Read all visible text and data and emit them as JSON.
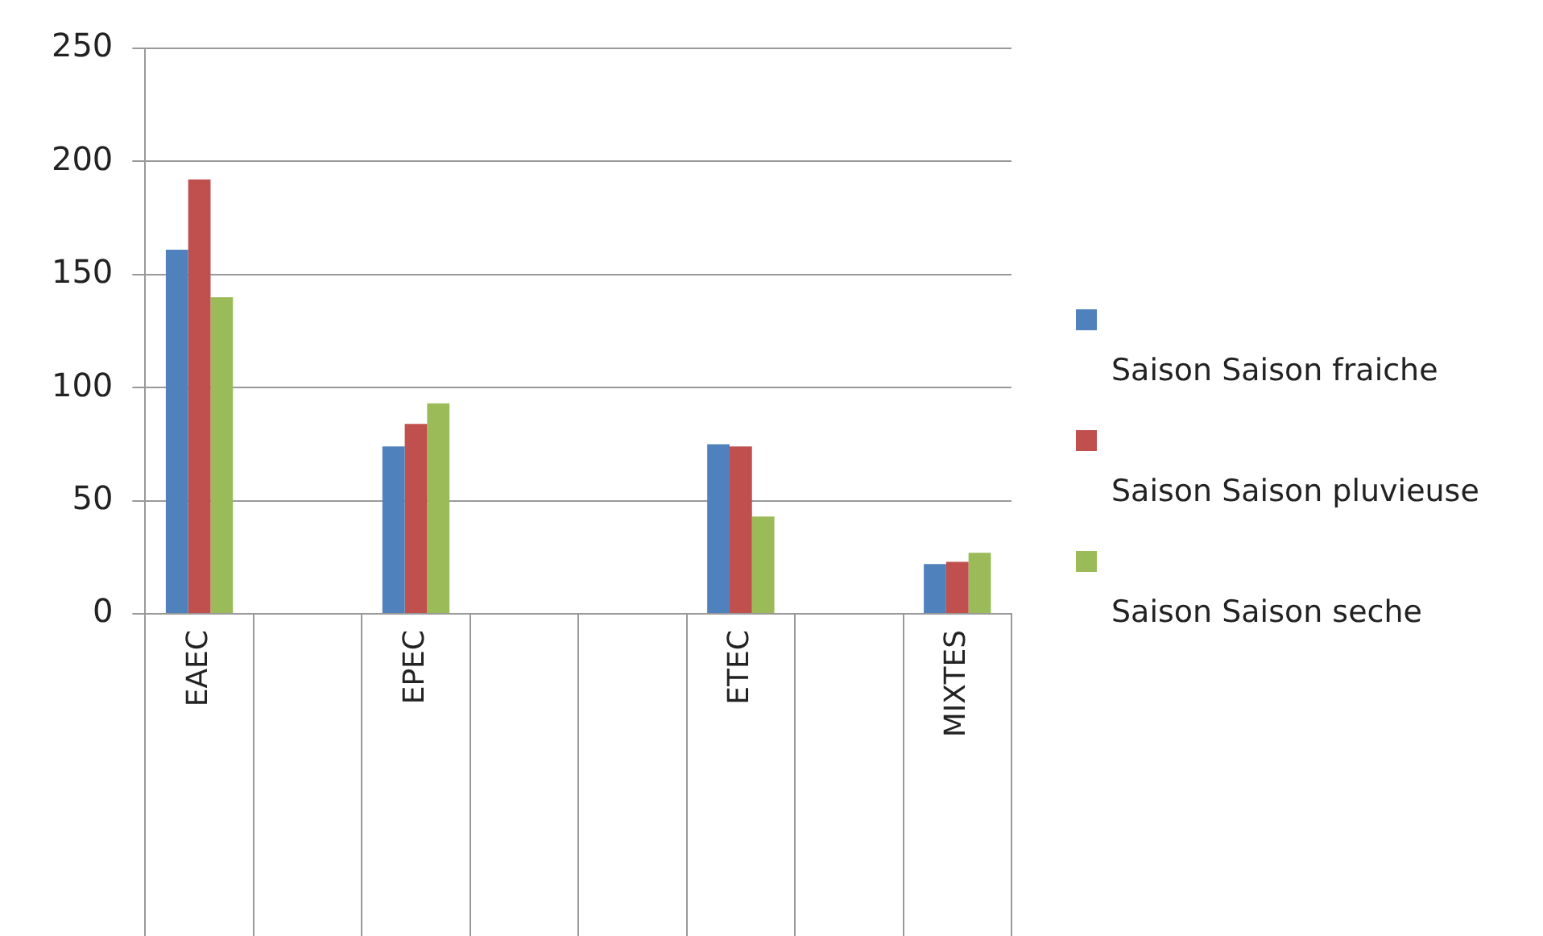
{
  "chart_data": {
    "type": "bar",
    "categories": [
      "EAEC",
      null,
      "EPEC",
      null,
      null,
      "ETEC",
      null,
      "MIXTES"
    ],
    "series": [
      {
        "name": "Saison Saison fraiche",
        "color": "#4f81bd",
        "values": [
          161,
          null,
          74,
          null,
          null,
          75,
          null,
          22
        ]
      },
      {
        "name": "Saison Saison pluvieuse",
        "color": "#c0504d",
        "values": [
          192,
          null,
          84,
          null,
          null,
          74,
          null,
          23
        ]
      },
      {
        "name": "Saison Saison seche",
        "color": "#9bbb59",
        "values": [
          140,
          null,
          93,
          null,
          null,
          43,
          null,
          27
        ]
      }
    ],
    "ylim": [
      0,
      250
    ],
    "yticks": [
      0,
      50,
      100,
      150,
      200,
      250
    ],
    "grid": "y",
    "legend": "right"
  }
}
